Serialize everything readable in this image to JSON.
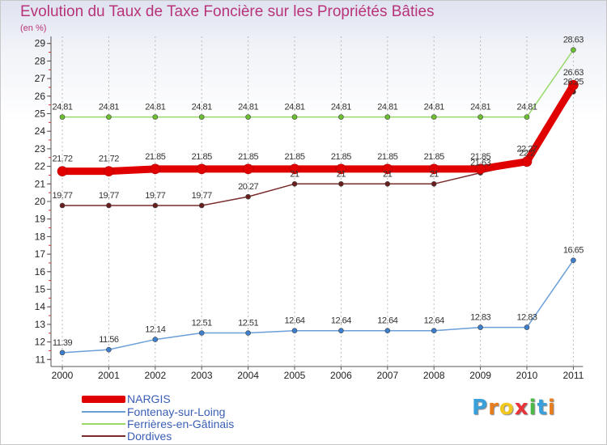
{
  "header": {
    "title": "Evolution du Taux de Taxe Foncière sur les Propriétés Bâties",
    "unit": "(en %)"
  },
  "logo": {
    "text": "Proxiti",
    "letters": [
      "P",
      "r",
      "o",
      "x",
      "i",
      "t",
      "i"
    ],
    "letter_colors": [
      "#3aa0dc",
      "#e87d1e",
      "#f2c81e",
      "#e8333a",
      "#4cb848",
      "#3aa0dc",
      "#e87d1e"
    ]
  },
  "colors": {
    "axis": "#555555",
    "grid": "#bbbbbb",
    "tick_label": "#222222",
    "data_label": "#333333"
  },
  "chart_data": {
    "type": "line",
    "title": "Evolution du Taux de Taxe Foncière sur les Propriétés Bâties",
    "ylabel": "(en %)",
    "xlabel": "",
    "categories": [
      "2000",
      "2001",
      "2002",
      "2003",
      "2004",
      "2005",
      "2006",
      "2007",
      "2008",
      "2009",
      "2010",
      "2011"
    ],
    "ylim": [
      10.6,
      29.4
    ],
    "yticks": [
      11,
      12,
      13,
      14,
      15,
      16,
      17,
      18,
      19,
      20,
      21,
      22,
      23,
      24,
      25,
      26,
      27,
      28,
      29
    ],
    "grid": "dashed vertical",
    "legend_position": "bottom-left",
    "series": [
      {
        "name": "NARGIS",
        "color": "#e00000",
        "marker_color": "#e00000",
        "line_width": 9,
        "values": [
          21.72,
          21.72,
          21.85,
          21.85,
          21.85,
          21.85,
          21.85,
          21.85,
          21.85,
          21.85,
          22.27,
          26.63
        ],
        "labels": [
          "21.72",
          "21.72",
          "21.85",
          "21.85",
          "21.85",
          "21.85",
          "21.85",
          "21.85",
          "21.85",
          "21.85",
          "22.27",
          "26.63"
        ]
      },
      {
        "name": "Fontenay-sur-Loing",
        "color": "#6a9fd8",
        "marker_color": "#3d7fcf",
        "line_width": 1.5,
        "values": [
          11.39,
          11.56,
          12.14,
          12.51,
          12.51,
          12.64,
          12.64,
          12.64,
          12.64,
          12.83,
          12.83,
          16.65
        ],
        "labels": [
          "11.39",
          "11.56",
          "12.14",
          "12.51",
          "12.51",
          "12.64",
          "12.64",
          "12.64",
          "12.64",
          "12.83",
          "12.83",
          "16.65"
        ]
      },
      {
        "name": "Ferrières-en-Gâtinais",
        "color": "#99d96b",
        "marker_color": "#6cbf2e",
        "line_width": 1.5,
        "values": [
          24.81,
          24.81,
          24.81,
          24.81,
          24.81,
          24.81,
          24.81,
          24.81,
          24.81,
          24.81,
          24.81,
          28.63
        ],
        "labels": [
          "24.81",
          "24.81",
          "24.81",
          "24.81",
          "24.81",
          "24.81",
          "24.81",
          "24.81",
          "24.81",
          "24.81",
          "24.81",
          "28.63"
        ]
      },
      {
        "name": "Dordives",
        "color": "#7a2b2b",
        "marker_color": "#6a1f1f",
        "line_width": 1.5,
        "values": [
          19.77,
          19.77,
          19.77,
          19.77,
          20.27,
          21.0,
          21.0,
          21.0,
          21.0,
          21.63,
          22.2,
          26.25
        ],
        "labels": [
          "19.77",
          "19.77",
          "19.77",
          "19.77",
          "20.27",
          "21",
          "21",
          "21",
          "21",
          "21.63",
          "22.2",
          "26.25"
        ]
      }
    ]
  }
}
